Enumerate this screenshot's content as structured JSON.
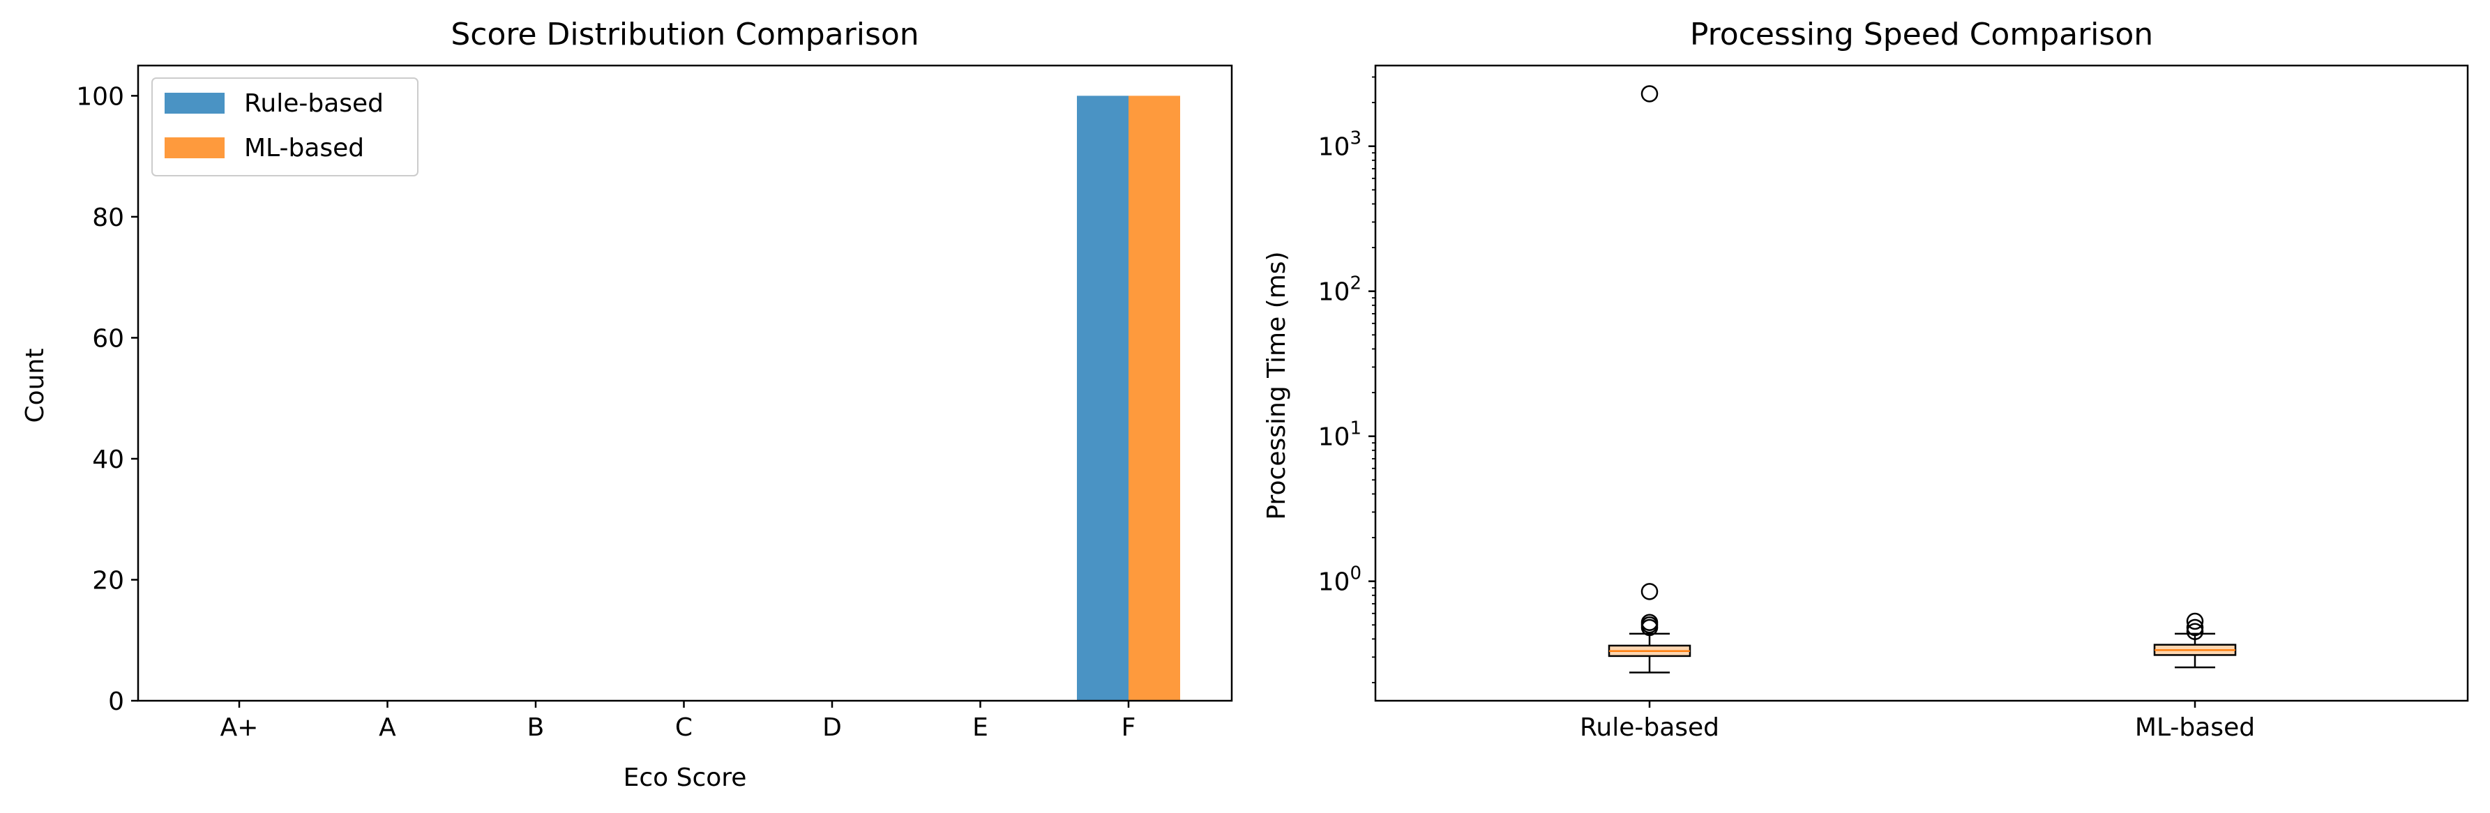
{
  "colors": {
    "rule_based": "#4a93c4",
    "ml_based": "#fe9a3d",
    "median": "#ff7f0e",
    "box_fill": "#fdd6b0",
    "axis": "#000000"
  },
  "chart_data": [
    {
      "type": "bar",
      "title": "Score Distribution Comparison",
      "xlabel": "Eco Score",
      "ylabel": "Count",
      "categories": [
        "A+",
        "A",
        "B",
        "C",
        "D",
        "E",
        "F"
      ],
      "series": [
        {
          "name": "Rule-based",
          "values": [
            0,
            0,
            0,
            0,
            0,
            0,
            100
          ]
        },
        {
          "name": "ML-based",
          "values": [
            0,
            0,
            0,
            0,
            0,
            0,
            100
          ]
        }
      ],
      "ylim": [
        0,
        105
      ],
      "yticks": [
        0,
        20,
        40,
        60,
        80,
        100
      ],
      "legend": "top-left",
      "grid": false
    },
    {
      "type": "box",
      "title": "Processing Speed Comparison",
      "ylabel": "Processing Time (ms)",
      "yscale": "log",
      "ylim": [
        0.15,
        3600
      ],
      "yticks": [
        1,
        10,
        100,
        1000
      ],
      "ytick_labels": [
        {
          "base": "10",
          "exp": "0"
        },
        {
          "base": "10",
          "exp": "1"
        },
        {
          "base": "10",
          "exp": "2"
        },
        {
          "base": "10",
          "exp": "3"
        }
      ],
      "categories": [
        "Rule-based",
        "ML-based"
      ],
      "boxes": [
        {
          "whisker_low": 0.235,
          "q1": 0.305,
          "median": 0.33,
          "q3": 0.36,
          "whisker_high": 0.435,
          "outliers": [
            2300,
            0.85,
            0.52,
            0.5,
            0.48
          ]
        },
        {
          "whisker_low": 0.255,
          "q1": 0.31,
          "median": 0.335,
          "q3": 0.365,
          "whisker_high": 0.435,
          "outliers": [
            0.53,
            0.48,
            0.45
          ]
        }
      ],
      "grid": false
    }
  ]
}
